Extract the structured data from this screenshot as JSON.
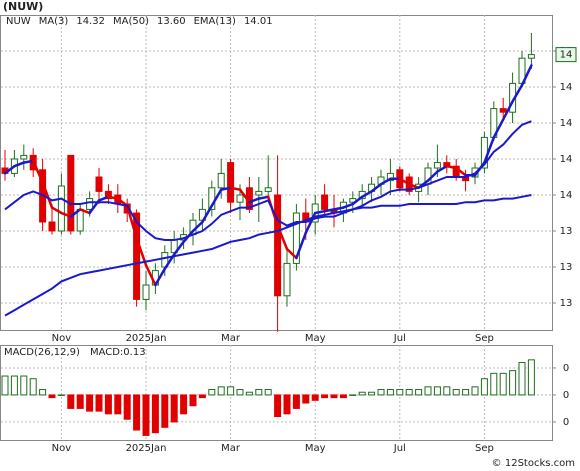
{
  "header": {
    "ticker": "(NUW)",
    "watermark": "© 12Stocks.com"
  },
  "chart_data": [
    {
      "type": "candlestick",
      "symbol": "NUW",
      "categories": [
        null,
        null,
        null,
        null,
        null,
        null,
        "Nov",
        null,
        null,
        null,
        null,
        null,
        null,
        null,
        null,
        "2025Jan",
        null,
        null,
        null,
        null,
        null,
        null,
        null,
        null,
        "Mar",
        null,
        null,
        null,
        null,
        null,
        null,
        null,
        null,
        "May",
        null,
        null,
        null,
        null,
        null,
        null,
        null,
        null,
        "Jul",
        null,
        null,
        null,
        null,
        null,
        null,
        null,
        null,
        "Sep",
        null,
        null,
        null,
        null,
        null
      ],
      "open": [
        13.75,
        13.72,
        13.8,
        13.82,
        13.74,
        13.45,
        13.4,
        13.82,
        13.4,
        13.52,
        13.7,
        13.62,
        13.6,
        13.55,
        13.5,
        13.02,
        13.1,
        13.2,
        13.28,
        13.35,
        13.38,
        13.46,
        13.52,
        13.64,
        13.78,
        13.56,
        13.64,
        13.6,
        13.62,
        13.6,
        13.04,
        13.22,
        13.5,
        13.45,
        13.6,
        13.52,
        13.5,
        13.56,
        13.58,
        13.62,
        13.66,
        13.68,
        13.74,
        13.7,
        13.62,
        13.66,
        13.75,
        13.78,
        13.76,
        13.7,
        13.7,
        13.75,
        13.92,
        14.08,
        14.06,
        14.22,
        14.36
      ],
      "high": [
        13.85,
        13.85,
        13.88,
        13.86,
        13.8,
        13.55,
        13.72,
        13.82,
        13.55,
        13.62,
        13.75,
        13.66,
        13.66,
        13.58,
        13.52,
        13.18,
        13.22,
        13.32,
        13.4,
        13.42,
        13.5,
        13.58,
        13.68,
        13.8,
        13.8,
        13.66,
        13.7,
        13.7,
        13.82,
        13.82,
        13.3,
        13.55,
        13.58,
        13.6,
        13.66,
        13.6,
        13.58,
        13.62,
        13.66,
        13.7,
        13.74,
        13.8,
        13.76,
        13.72,
        13.7,
        13.78,
        13.88,
        13.82,
        13.8,
        13.74,
        13.78,
        13.95,
        14.12,
        14.14,
        14.28,
        14.4,
        14.5
      ],
      "low": [
        13.68,
        13.7,
        13.74,
        13.7,
        13.4,
        13.38,
        13.38,
        13.38,
        13.38,
        13.48,
        13.55,
        13.55,
        13.5,
        13.45,
        12.98,
        12.96,
        13.05,
        13.15,
        13.22,
        13.3,
        13.32,
        13.4,
        13.48,
        13.58,
        13.5,
        13.46,
        13.5,
        13.45,
        13.58,
        12.84,
        12.98,
        13.18,
        13.35,
        13.38,
        13.48,
        13.42,
        13.45,
        13.5,
        13.54,
        13.56,
        13.6,
        13.6,
        13.62,
        13.6,
        13.56,
        13.6,
        13.7,
        13.72,
        13.68,
        13.62,
        13.66,
        13.72,
        13.9,
        14.02,
        14.0,
        14.2,
        14.3
      ],
      "close": [
        13.72,
        13.8,
        13.82,
        13.74,
        13.45,
        13.4,
        13.65,
        13.4,
        13.52,
        13.58,
        13.62,
        13.58,
        13.55,
        13.5,
        13.02,
        13.1,
        13.18,
        13.28,
        13.35,
        13.38,
        13.46,
        13.52,
        13.64,
        13.72,
        13.56,
        13.6,
        13.52,
        13.62,
        13.64,
        13.04,
        13.22,
        13.5,
        13.45,
        13.55,
        13.52,
        13.5,
        13.56,
        13.58,
        13.62,
        13.66,
        13.7,
        13.72,
        13.64,
        13.62,
        13.66,
        13.75,
        13.78,
        13.76,
        13.7,
        13.68,
        13.75,
        13.92,
        14.08,
        14.06,
        14.22,
        14.36,
        14.38
      ],
      "up_color": "#1f6e1f",
      "down_color": "#e00000",
      "series": [
        {
          "name": "MA(3)",
          "last": 14.32,
          "color": "#1a1acc",
          "down_color": "#e00000",
          "width": 2.5,
          "values": [
            13.72,
            13.76,
            13.78,
            13.79,
            13.67,
            13.53,
            13.5,
            13.48,
            13.52,
            13.5,
            13.57,
            13.59,
            13.58,
            13.54,
            13.36,
            13.21,
            13.1,
            13.19,
            13.27,
            13.34,
            13.4,
            13.45,
            13.54,
            13.63,
            13.64,
            13.63,
            13.56,
            13.58,
            13.59,
            13.43,
            13.3,
            13.25,
            13.39,
            13.5,
            13.51,
            13.52,
            13.53,
            13.55,
            13.59,
            13.62,
            13.66,
            13.69,
            13.69,
            13.66,
            13.64,
            13.68,
            13.73,
            13.76,
            13.75,
            13.71,
            13.71,
            13.78,
            13.92,
            14.02,
            14.12,
            14.21,
            14.32
          ]
        },
        {
          "name": "MA(50)",
          "last": {
            "value": 13.6,
            "label": "13.60"
          },
          "color": "#1a1acc",
          "width": 2,
          "values": [
            12.93,
            12.96,
            12.99,
            13.02,
            13.05,
            13.08,
            13.12,
            13.14,
            13.16,
            13.17,
            13.18,
            13.19,
            13.2,
            13.21,
            13.22,
            13.23,
            13.24,
            13.25,
            13.26,
            13.27,
            13.28,
            13.29,
            13.3,
            13.32,
            13.34,
            13.35,
            13.36,
            13.38,
            13.39,
            13.4,
            13.42,
            13.44,
            13.46,
            13.48,
            13.49,
            13.5,
            13.51,
            13.52,
            13.53,
            13.53,
            13.54,
            13.54,
            13.54,
            13.55,
            13.55,
            13.55,
            13.55,
            13.55,
            13.55,
            13.56,
            13.56,
            13.57,
            13.57,
            13.58,
            13.58,
            13.59,
            13.6
          ]
        },
        {
          "name": "EMA(13)",
          "last": 14.01,
          "color": "#1a1acc",
          "width": 2,
          "values": [
            13.52,
            13.56,
            13.6,
            13.62,
            13.6,
            13.57,
            13.58,
            13.55,
            13.55,
            13.56,
            13.56,
            13.56,
            13.55,
            13.54,
            13.45,
            13.4,
            13.36,
            13.35,
            13.35,
            13.36,
            13.38,
            13.4,
            13.44,
            13.49,
            13.51,
            13.53,
            13.53,
            13.55,
            13.57,
            13.46,
            13.43,
            13.45,
            13.45,
            13.47,
            13.48,
            13.48,
            13.5,
            13.52,
            13.54,
            13.57,
            13.59,
            13.62,
            13.63,
            13.63,
            13.64,
            13.66,
            13.68,
            13.7,
            13.7,
            13.7,
            13.72,
            13.77,
            13.84,
            13.88,
            13.94,
            13.99,
            14.01
          ]
        }
      ],
      "ylim": [
        12.85,
        14.6
      ],
      "yticks": [
        {
          "value": 13.0,
          "label": "13"
        },
        {
          "value": 13.2,
          "label": "13"
        },
        {
          "value": 13.4,
          "label": "13"
        },
        {
          "value": 13.6,
          "label": "14"
        },
        {
          "value": 13.8,
          "label": "14"
        },
        {
          "value": 14.0,
          "label": "14"
        },
        {
          "value": 14.2,
          "label": "14"
        },
        {
          "value": 14.4,
          "label": "14"
        }
      ],
      "last_price": {
        "value": 14.38,
        "label": "14"
      },
      "grid": true
    },
    {
      "type": "bar",
      "title": "MACD(26,12,9)",
      "subtitle": "MACD:0.13",
      "categories": [
        null,
        null,
        null,
        null,
        null,
        null,
        "Nov",
        null,
        null,
        null,
        null,
        null,
        null,
        null,
        null,
        "2025Jan",
        null,
        null,
        null,
        null,
        null,
        null,
        null,
        null,
        "Mar",
        null,
        null,
        null,
        null,
        null,
        null,
        null,
        null,
        "May",
        null,
        null,
        null,
        null,
        null,
        null,
        null,
        null,
        "Jul",
        null,
        null,
        null,
        null,
        null,
        null,
        null,
        null,
        "Sep",
        null,
        null,
        null,
        null,
        null
      ],
      "values": [
        0.07,
        0.07,
        0.07,
        0.06,
        0.02,
        -0.01,
        0.0,
        -0.05,
        -0.05,
        -0.06,
        -0.06,
        -0.07,
        -0.07,
        -0.09,
        -0.13,
        -0.15,
        -0.14,
        -0.12,
        -0.1,
        -0.07,
        -0.04,
        -0.01,
        0.02,
        0.03,
        0.03,
        0.02,
        0.01,
        0.02,
        0.02,
        -0.08,
        -0.07,
        -0.05,
        -0.03,
        -0.02,
        -0.01,
        -0.01,
        -0.01,
        0.0,
        0.01,
        0.01,
        0.02,
        0.02,
        0.02,
        0.02,
        0.02,
        0.03,
        0.03,
        0.03,
        0.02,
        0.02,
        0.03,
        0.06,
        0.08,
        0.08,
        0.09,
        0.12,
        0.13
      ],
      "up_color": "#1f6e1f",
      "down_color": "#e00000",
      "ylim": [
        -0.167,
        0.185
      ],
      "yticks": [
        {
          "value": -0.1,
          "label": "0"
        },
        0,
        {
          "value": 0.1,
          "label": "0"
        }
      ],
      "grid": true
    }
  ]
}
